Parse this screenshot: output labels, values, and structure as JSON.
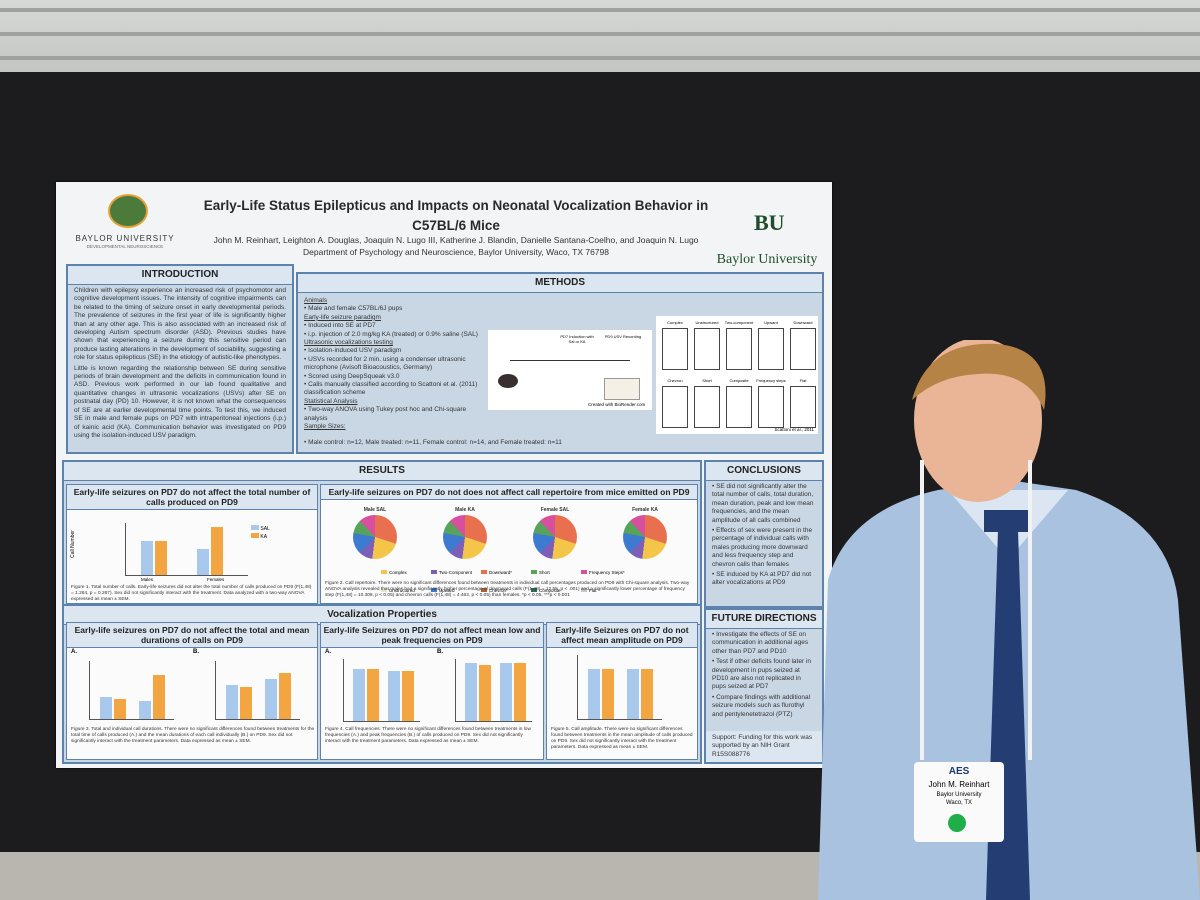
{
  "poster": {
    "title": "Early-Life Status Epilepticus and Impacts on Neonatal Vocalization Behavior in C57BL/6 Mice",
    "authors": "John M. Reinhart, Leighton A. Douglas, Joaquin N. Lugo III, Katherine J. Blandin, Danielle Santana-Coelho, and Joaquin N. Lugo",
    "affiliation": "Department of Psychology and Neuroscience, Baylor University, Waco, TX 76798",
    "left_logo": "BAYLOR UNIVERSITY",
    "left_logo_sub": "DEVELOPMENTAL NEUROSCIENCE",
    "right_logo_mark": "BU",
    "right_logo": "Baylor University",
    "introduction": {
      "heading": "INTRODUCTION",
      "p1": "Children with epilepsy experience an increased risk of psychomotor and cognitive development issues. The intensity of cognitive impairments can be related to the timing of seizure onset in early developmental periods. The prevalence of seizures in the first year of life is significantly higher than at any other age. This is also associated with an increased risk of developing Autism spectrum disorder (ASD). Previous studies have shown that experiencing a seizure during this sensitive period can produce lasting alterations in the development of sociability, suggesting a role for status epilepticus (SE) in the etiology of autistic-like phenotypes.",
      "p2": "Little is known regarding the relationship between SE during sensitive periods of brain development and the deficits in communication found in ASD. Previous work performed in our lab found qualitative and quantitative changes in ultrasonic vocalizations (USVs) after SE on postnatal day (PD) 10. However, it is not known what the consequences of SE are at earlier developmental time points. To test this, we induced SE in male and female pups on PD7 with intraperitoneal injections (i.p.) of kainic acid (KA). Communication behavior was investigated on PD9 using the isolation-induced USV paradigm."
    },
    "methods": {
      "heading": "METHODS",
      "animals_h": "Animals",
      "animals": "Male and female C57BL/6J pups",
      "seizure_h": "Early-life seizure paradigm",
      "seizure1": "Induced into SE at PD7",
      "seizure2": "i.p. injection of 2.0 mg/kg KA (treated) or 0.9% saline (SAL)",
      "usv_h": "Ultrasonic vocalizations testing",
      "usv1": "Isolation-induced USV paradigm",
      "usv2": "USVs recorded for 2 min. using a condenser ultrasonic microphone (Avisoft Bioacoustics, Germany)",
      "usv3": "Scored using DeepSqueak v3.0",
      "usv4": "Calls manually classified according to Scattoni et al. (2011) classification scheme",
      "stats_h": "Statistical Analysis",
      "stats": "Two-way ANOVA using Tukey post hoc and Chi-square analysis",
      "sample_h": "Sample Sizes:",
      "sample": "Male control: n=12, Male treated: n=11, Female control: n=14, and Female treated: n=11",
      "diagram_l1": "PD7 Induction with Sal or KA",
      "diagram_l2": "PD9 USV Recording",
      "diagram_credit": "Created with BioRender.com",
      "call_types": [
        "Complex",
        "Unstructured",
        "Two-component",
        "Upward",
        "Downward",
        "Chevron",
        "Short",
        "Composite",
        "Frequency steps",
        "Flat"
      ],
      "call_credit": "Scattoni et al., 2011"
    },
    "results": {
      "heading": "RESULTS",
      "box1_title": "Early-life seizures on PD7 do not affect the total number of calls produced on PD9",
      "box1_ylabel": "Call Number",
      "legend_sal": "SAL",
      "legend_ka": "KA",
      "x_males": "Males",
      "x_females": "Females",
      "box1_caption": "Figure 1. Total number of calls. Early-life seizures did not alter the total number of calls produced on PD9 (F(1,48) = 1.264, p = 0.267). Sex did not significantly interact with the treatment. Data analyzed with a two-way ANOVA expressed as mean ± SEM.",
      "box2_title": "Early-life seizures on PD7 do not does not affect call repertoire from mice emitted on PD9",
      "pies": [
        "Male SAL",
        "Male KA",
        "Female SAL",
        "Female KA"
      ],
      "pie_legend": [
        "Complex",
        "Two-Component",
        "Downward*",
        "Short",
        "Frequency Steps*",
        "Unstructured",
        "Upward",
        "Chevron*",
        "Composite",
        "Flat"
      ],
      "box2_caption": "Figure 2. Call repertoire. There were no significant differences found between treatments in individual call percentages produced on PD9 with Chi-square analysis. Two-way ANOVA analysis revealed that males had a significantly higher percentage of downward calls (F(1,48) = 12.55, p < .001) and a significantly lower percentage of frequency step (F(1,48) = 10.308, p < 0.05) and chevron calls (F(1,48) = 4.463, p < 0.05) than females. *p < 0.05, ***p < 0.001"
    },
    "vocal": {
      "heading": "Vocalization Properties",
      "box3_title": "Early-life seizures on PD7 do not affect the total and mean durations of calls on PD9",
      "box3_caption": "Figure 3. Total and individual call durations. There were no significant differences found between treatments for the total time of calls produced (A.) and the mean durations of each call individually (B.) on PD9. Sex did not significantly interact with the treatment parameters. Data expressed as mean ± SEM.",
      "box4_title": "Early-life Seizures on PD7 do not affect mean low and peak frequencies on PD9",
      "box4_caption": "Figure 4. Call frequencies. There were no significant differences found between treatments in low frequencies (A.) and peak frequencies (B.) of calls produced on PD9. Sex did not significantly interact with the treatment parameters. Data expressed as mean ± SEM.",
      "box5_title": "Early-life Seizures on PD7 do not affect mean amplitude on PD9",
      "box5_caption": "Figure 5. Call amplitude. There were no significant differences found between treatments in the mean amplitude of calls produced on PD9. Sex did not significantly interact with the treatment parameters. Data expressed as mean ± SEM.",
      "label_a": "A.",
      "label_b": "B."
    },
    "conclusions": {
      "heading": "CONCLUSIONS",
      "items": [
        "SE did not significantly alter the total number of calls, total duration, mean duration, peak and low mean frequencies, and the mean amplitude of all calls combined",
        "Effects of sex were present in the percentage of individual calls with males producing more downward and less frequency step and chevron calls than females",
        "SE induced by KA at PD7 did not alter vocalizations at PD9"
      ]
    },
    "future": {
      "heading": "FUTURE DIRECTIONS",
      "items": [
        "Investigate the effects of SE on communication in additional ages other than PD7 and PD10",
        "Test if other deficits found later in development in pups seized at PD10 are also not replicated in pups seized at PD7",
        "Compare findings with additional seizure models such as flurothyl and pentylenetetrazol (PTZ)"
      ],
      "support": "Support: Funding for this work was supported by an NIH Grant R15S088776"
    }
  },
  "badge": {
    "org": "AES",
    "name": "John M. Reinhart",
    "inst": "Baylor University",
    "city": "Waco, TX"
  },
  "colors": {
    "panel": "#c9d7e5",
    "border": "#5b83ad",
    "sal": "#a9c9ec",
    "ka": "#f2a541"
  }
}
